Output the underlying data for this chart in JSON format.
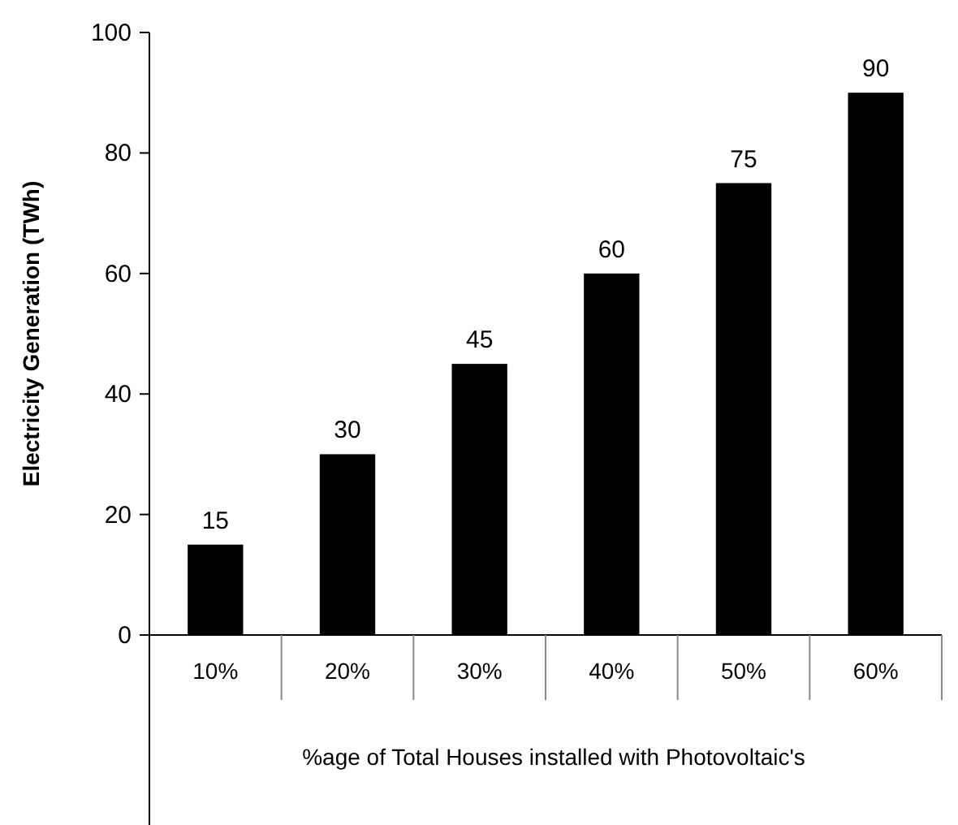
{
  "chart_data": {
    "type": "bar",
    "categories": [
      "10%",
      "20%",
      "30%",
      "40%",
      "50%",
      "60%"
    ],
    "values": [
      15,
      30,
      45,
      60,
      75,
      90
    ],
    "color": "#000000",
    "ylim": [
      0,
      100
    ],
    "yticks": [
      0,
      20,
      40,
      60,
      80,
      100
    ],
    "xlabel": "%age of Total Houses installed with Photovoltaic's",
    "ylabel": "Electricity Generation (TWh)",
    "data_labels": true,
    "grid": false
  }
}
